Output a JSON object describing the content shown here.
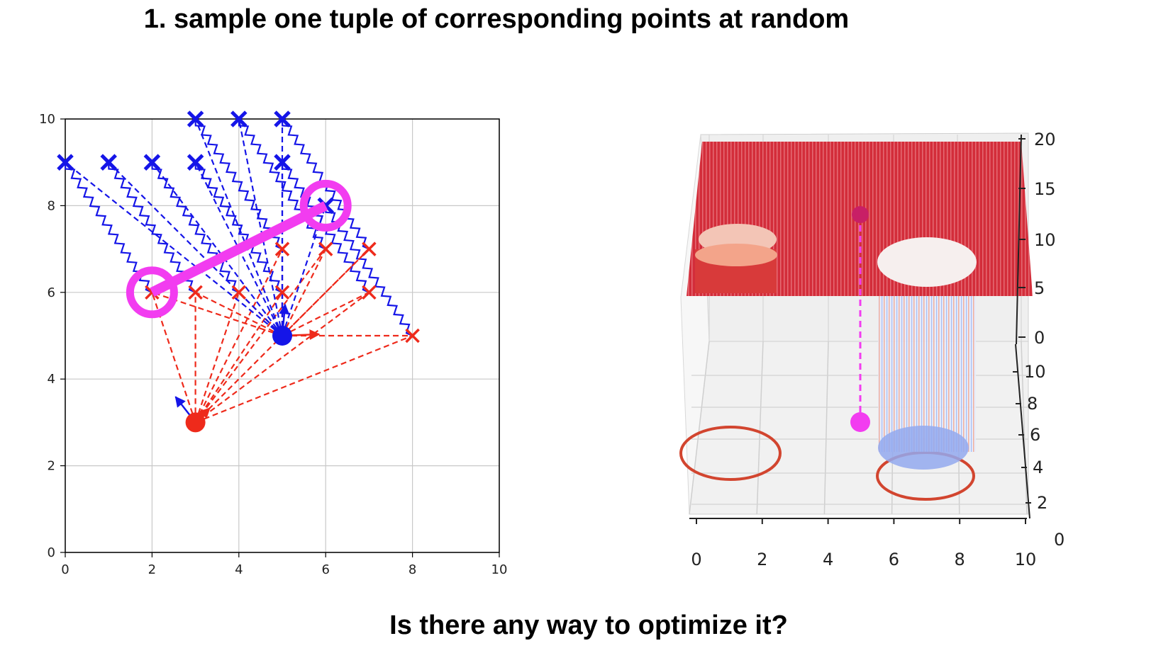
{
  "title": "1.  sample one tuple of corresponding points at random",
  "footer": "Is there any way to optimize it?",
  "colors": {
    "red": "#ee2a1b",
    "blue": "#1515e8",
    "magenta": "#f23cf0",
    "surface": "#d7303c"
  },
  "chart_data": [
    {
      "type": "scatter",
      "xlim": [
        0,
        10
      ],
      "ylim": [
        0,
        10
      ],
      "grid": true,
      "xticks": [
        "0",
        "2",
        "4",
        "6",
        "8",
        "10"
      ],
      "yticks": [
        "0",
        "2",
        "4",
        "6",
        "8",
        "10"
      ],
      "red_origin": [
        3,
        3
      ],
      "blue_origin": [
        5,
        5
      ],
      "red_points": [
        [
          2,
          6
        ],
        [
          3,
          6
        ],
        [
          4,
          6
        ],
        [
          5,
          6
        ],
        [
          5,
          7
        ],
        [
          6,
          7
        ],
        [
          7,
          7
        ],
        [
          7,
          6
        ],
        [
          8,
          5
        ]
      ],
      "blue_points": [
        [
          0,
          9
        ],
        [
          1,
          9
        ],
        [
          2,
          9
        ],
        [
          3,
          9
        ],
        [
          3,
          10
        ],
        [
          4,
          10
        ],
        [
          5,
          10
        ],
        [
          5,
          9
        ],
        [
          6,
          8
        ]
      ],
      "selected_pair": [
        [
          2,
          6
        ],
        [
          6,
          8
        ]
      ]
    },
    {
      "type": "surface",
      "xticks": [
        "0",
        "2",
        "4",
        "6",
        "8",
        "10"
      ],
      "yticks": [
        "0",
        "2",
        "4",
        "6",
        "8",
        "10"
      ],
      "zticks": [
        "0",
        "5",
        "10",
        "15",
        "20"
      ],
      "point": [
        5,
        3
      ]
    }
  ]
}
